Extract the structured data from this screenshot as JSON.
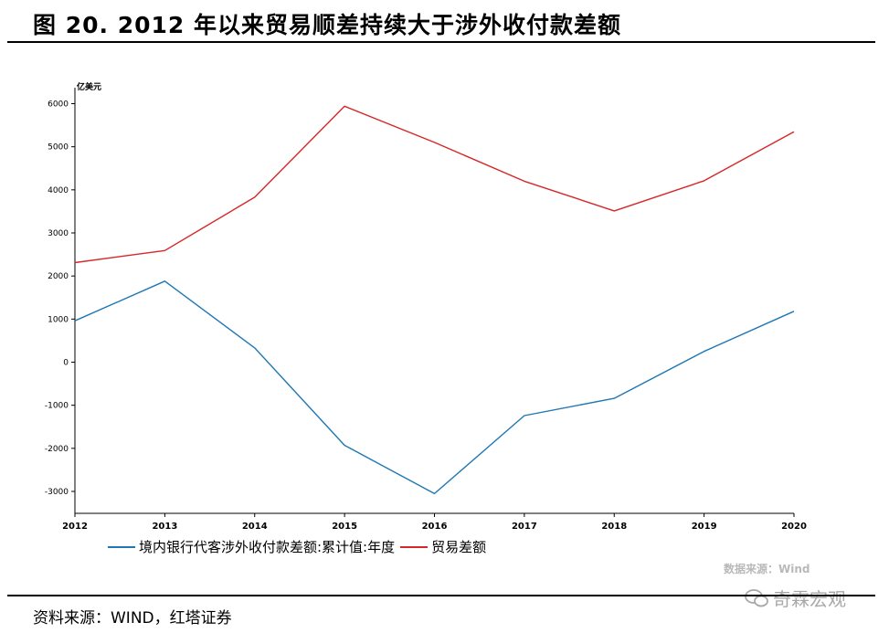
{
  "figure": {
    "title": "图 20. 2012 年以来贸易顺差持续大于涉外收付款差额",
    "source_note": "资料来源：WIND，红塔证券",
    "data_source_label": "数据来源：Wind",
    "watermark": "奇霖宏观"
  },
  "chart_data": {
    "type": "line",
    "title": "",
    "xlabel": "",
    "ylabel": "亿美元",
    "x": [
      "2012",
      "2013",
      "2014",
      "2015",
      "2016",
      "2017",
      "2018",
      "2019",
      "2020"
    ],
    "yticks": [
      6000,
      5000,
      4000,
      3000,
      2000,
      1000,
      0,
      -1000,
      -2000,
      -3000
    ],
    "ylim": [
      -3500,
      6500
    ],
    "grid": false,
    "legend_position": "bottom",
    "series": [
      {
        "name": "境内银行代客涉外收付款差额:累计值:年度",
        "color": "#1f77b4",
        "values": [
          960,
          1880,
          330,
          -1930,
          -3050,
          -1240,
          -840,
          250,
          1180
        ]
      },
      {
        "name": "贸易差额",
        "color": "#d62728",
        "values": [
          2310,
          2590,
          3830,
          5940,
          5100,
          4200,
          3510,
          4210,
          5350
        ]
      }
    ]
  }
}
